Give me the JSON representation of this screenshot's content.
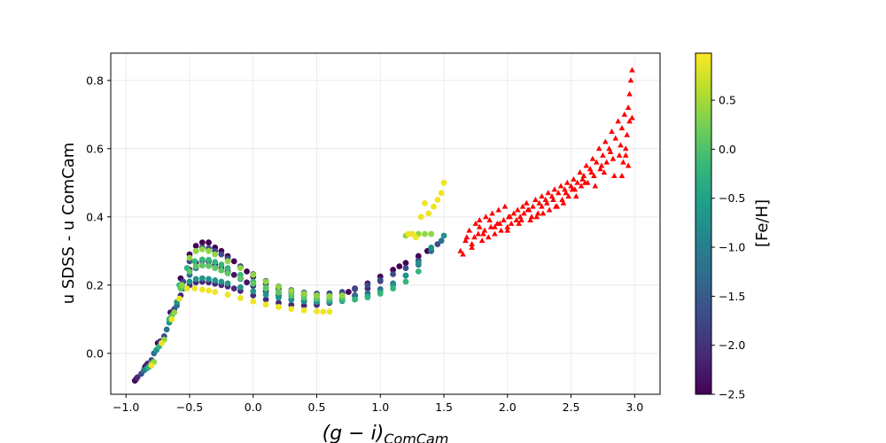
{
  "chart_data": {
    "type": "scatter",
    "title": "",
    "xlabel_main": "(g − i)",
    "xlabel_sub": "ComCam",
    "ylabel": "u SDSS - u ComCam",
    "xlim": [
      -1.12,
      3.2
    ],
    "ylim": [
      -0.12,
      0.88
    ],
    "x_ticks": [
      -1.0,
      -0.5,
      0.0,
      0.5,
      1.0,
      1.5,
      2.0,
      2.5,
      3.0
    ],
    "x_tick_labels": [
      "−1.0",
      "−0.5",
      "0.0",
      "0.5",
      "1.0",
      "1.5",
      "2.0",
      "2.5",
      "3.0"
    ],
    "y_ticks": [
      0.0,
      0.2,
      0.4,
      0.6,
      0.8
    ],
    "y_tick_labels": [
      "0.0",
      "0.2",
      "0.4",
      "0.6",
      "0.8"
    ],
    "grid": true,
    "colorbar": {
      "label": "[Fe/H]",
      "colormap": "viridis",
      "range": [
        -2.5,
        0.98
      ],
      "ticks": [
        -2.5,
        -2.0,
        -1.5,
        -1.0,
        -0.5,
        0.0,
        0.5
      ],
      "tick_labels": [
        "−2.5",
        "−2.0",
        "−1.5",
        "−1.0",
        "−0.5",
        "0.0",
        "0.5"
      ],
      "stops": [
        "#440154",
        "#482878",
        "#3e4989",
        "#31688e",
        "#26828e",
        "#1f9e89",
        "#35b779",
        "#6ece58",
        "#b5de2b",
        "#fde725"
      ]
    },
    "series": [
      {
        "name": "model tracks (colored by [Fe/H])",
        "marker": "circle",
        "tracks": [
          {
            "feh": -2.5,
            "x": [
              -0.93,
              -0.85,
              -0.75,
              -0.65,
              -0.57,
              -0.5,
              -0.45,
              -0.4,
              -0.35,
              -0.3,
              -0.25,
              -0.2,
              -0.15,
              -0.1,
              -0.05,
              0.0,
              0.1,
              0.2,
              0.3,
              0.4,
              0.5,
              0.6,
              0.7,
              0.75,
              0.8,
              0.9,
              1.0,
              1.1,
              1.15,
              1.2,
              1.3,
              1.37
            ],
            "y": [
              -0.08,
              -0.04,
              0.03,
              0.12,
              0.22,
              0.29,
              0.315,
              0.325,
              0.325,
              0.31,
              0.3,
              0.285,
              0.27,
              0.255,
              0.24,
              0.225,
              0.205,
              0.19,
              0.18,
              0.172,
              0.17,
              0.17,
              0.175,
              0.18,
              0.19,
              0.205,
              0.225,
              0.245,
              0.255,
              0.265,
              0.285,
              0.3
            ]
          },
          {
            "feh": -2.3,
            "x": [
              -0.92,
              -0.84,
              -0.74,
              -0.64,
              -0.57,
              -0.5,
              -0.45,
              -0.4,
              -0.35,
              -0.3,
              -0.25,
              -0.2,
              -0.15,
              -0.1,
              -0.05,
              0.0,
              0.1,
              0.2,
              0.3,
              0.4,
              0.5,
              0.6,
              0.7
            ],
            "y": [
              -0.075,
              -0.035,
              0.03,
              0.12,
              0.2,
              0.245,
              0.265,
              0.272,
              0.27,
              0.26,
              0.25,
              0.24,
              0.23,
              0.22,
              0.208,
              0.198,
              0.182,
              0.168,
              0.158,
              0.152,
              0.15,
              0.152,
              0.158
            ]
          },
          {
            "feh": -2.1,
            "x": [
              -0.91,
              -0.83,
              -0.73,
              -0.63,
              -0.57,
              -0.5,
              -0.45,
              -0.4,
              -0.35,
              -0.3,
              -0.25,
              -0.2,
              -0.15,
              -0.1,
              0.0,
              0.1,
              0.2,
              0.3,
              0.4,
              0.5,
              0.6,
              0.7,
              0.8,
              0.9,
              1.0
            ],
            "y": [
              -0.07,
              -0.03,
              0.035,
              0.12,
              0.17,
              0.2,
              0.208,
              0.21,
              0.208,
              0.204,
              0.2,
              0.196,
              0.19,
              0.183,
              0.17,
              0.158,
              0.148,
              0.142,
              0.14,
              0.142,
              0.148,
              0.158,
              0.17,
              0.19,
              0.212
            ]
          },
          {
            "feh": -1.7,
            "x": [
              -0.88,
              -0.8,
              -0.7,
              -0.62,
              -0.55,
              -0.5,
              -0.45,
              -0.4,
              -0.35,
              -0.3,
              -0.25,
              -0.2,
              -0.1,
              0.0,
              0.1,
              0.2,
              0.3,
              0.4,
              0.5,
              0.6,
              0.7,
              0.8,
              0.9,
              1.0,
              1.1,
              1.2,
              1.3,
              1.4,
              1.45
            ],
            "y": [
              -0.06,
              -0.02,
              0.05,
              0.13,
              0.21,
              0.27,
              0.3,
              0.31,
              0.308,
              0.3,
              0.29,
              0.278,
              0.255,
              0.232,
              0.212,
              0.196,
              0.185,
              0.178,
              0.175,
              0.176,
              0.18,
              0.188,
              0.2,
              0.215,
              0.232,
              0.25,
              0.272,
              0.3,
              0.32
            ]
          },
          {
            "feh": -1.2,
            "x": [
              -0.86,
              -0.78,
              -0.68,
              -0.6,
              -0.55,
              -0.5,
              -0.45,
              -0.4,
              -0.35,
              -0.3,
              -0.25,
              -0.2,
              -0.1,
              0.0,
              0.1,
              0.2,
              0.3,
              0.4,
              0.5,
              0.6,
              0.7,
              0.8,
              0.9,
              1.0,
              1.1,
              1.2,
              1.3,
              1.4,
              1.48
            ],
            "y": [
              -0.05,
              0.0,
              0.07,
              0.14,
              0.19,
              0.23,
              0.25,
              0.258,
              0.258,
              0.252,
              0.244,
              0.235,
              0.218,
              0.202,
              0.188,
              0.176,
              0.168,
              0.163,
              0.16,
              0.16,
              0.162,
              0.168,
              0.176,
              0.188,
              0.205,
              0.228,
              0.26,
              0.3,
              0.33
            ]
          },
          {
            "feh": -0.7,
            "x": [
              -0.84,
              -0.76,
              -0.66,
              -0.6,
              -0.55,
              -0.5,
              -0.45,
              -0.4,
              -0.35,
              -0.3,
              -0.25,
              -0.2,
              -0.1,
              0.0,
              0.1,
              0.2,
              0.3,
              0.4,
              0.5,
              0.6,
              0.7,
              0.8,
              0.9,
              1.0,
              1.1,
              1.2,
              1.3,
              1.4,
              1.5
            ],
            "y": [
              -0.045,
              0.01,
              0.09,
              0.15,
              0.19,
              0.21,
              0.218,
              0.22,
              0.218,
              0.214,
              0.21,
              0.205,
              0.194,
              0.182,
              0.172,
              0.163,
              0.157,
              0.153,
              0.151,
              0.151,
              0.153,
              0.158,
              0.167,
              0.18,
              0.2,
              0.228,
              0.265,
              0.31,
              0.345
            ]
          },
          {
            "feh": -0.2,
            "x": [
              -0.82,
              -0.74,
              -0.66,
              -0.58,
              -0.52,
              -0.46,
              -0.4,
              -0.35,
              -0.3,
              -0.25,
              -0.2,
              -0.1,
              0.0,
              0.1,
              0.2,
              0.3,
              0.4,
              0.5,
              0.6,
              0.7,
              0.8,
              0.9,
              1.0,
              1.1,
              1.2,
              1.3
            ],
            "y": [
              -0.04,
              0.02,
              0.1,
              0.2,
              0.25,
              0.27,
              0.275,
              0.274,
              0.268,
              0.26,
              0.25,
              0.23,
              0.21,
              0.193,
              0.18,
              0.17,
              0.163,
              0.158,
              0.156,
              0.156,
              0.158,
              0.164,
              0.175,
              0.19,
              0.21,
              0.24
            ]
          },
          {
            "feh": 0.1,
            "x": [
              -0.8,
              -0.72,
              -0.64,
              -0.57,
              -0.5,
              -0.45,
              -0.4,
              -0.35,
              -0.3,
              -0.25,
              -0.2,
              -0.1,
              0.0,
              0.1,
              0.2,
              0.3,
              0.4,
              0.5,
              0.6,
              0.7
            ],
            "y": [
              -0.03,
              0.03,
              0.11,
              0.19,
              0.24,
              0.255,
              0.258,
              0.256,
              0.25,
              0.243,
              0.235,
              0.22,
              0.205,
              0.19,
              0.178,
              0.17,
              0.165,
              0.162,
              0.162,
              0.165
            ]
          },
          {
            "feh": 0.4,
            "x": [
              -0.78,
              -0.7,
              -0.62,
              -0.56,
              -0.5,
              -0.45,
              -0.4,
              -0.35,
              -0.3,
              -0.2,
              -0.1,
              0.0,
              0.1,
              0.2,
              0.3,
              0.4,
              0.5,
              0.6,
              0.7,
              1.2,
              1.25,
              1.3,
              1.35,
              1.4
            ],
            "y": [
              -0.025,
              0.04,
              0.12,
              0.2,
              0.28,
              0.3,
              0.305,
              0.3,
              0.29,
              0.27,
              0.25,
              0.23,
              0.21,
              0.195,
              0.183,
              0.175,
              0.17,
              0.168,
              0.17,
              0.345,
              0.35,
              0.35,
              0.35,
              0.35
            ]
          },
          {
            "feh": 0.9,
            "x": [
              -0.8,
              -0.72,
              -0.64,
              -0.58,
              -0.52,
              -0.46,
              -0.4,
              -0.35,
              -0.3,
              -0.2,
              -0.1,
              0.0,
              0.1,
              0.2,
              0.3,
              0.4,
              0.5,
              0.55,
              0.6,
              1.22,
              1.25,
              1.28,
              1.32,
              1.35,
              1.38,
              1.42,
              1.45,
              1.48,
              1.5
            ],
            "y": [
              -0.035,
              0.03,
              0.1,
              0.16,
              0.19,
              0.19,
              0.187,
              0.184,
              0.18,
              0.172,
              0.162,
              0.152,
              0.143,
              0.136,
              0.13,
              0.126,
              0.123,
              0.122,
              0.122,
              0.35,
              0.35,
              0.34,
              0.4,
              0.44,
              0.41,
              0.43,
              0.45,
              0.47,
              0.5
            ]
          }
        ]
      },
      {
        "name": "red triangles",
        "marker": "triangle",
        "color": "#ff0000",
        "x": [
          1.63,
          1.65,
          1.67,
          1.7,
          1.72,
          1.74,
          1.75,
          1.77,
          1.78,
          1.8,
          1.82,
          1.83,
          1.85,
          1.87,
          1.88,
          1.9,
          1.92,
          1.93,
          1.95,
          1.97,
          1.98,
          2.0,
          2.02,
          2.03,
          2.05,
          2.07,
          2.08,
          2.1,
          2.12,
          2.13,
          2.15,
          2.17,
          2.18,
          2.2,
          2.22,
          2.23,
          2.25,
          2.27,
          2.28,
          2.3,
          2.32,
          2.33,
          2.35,
          2.37,
          2.38,
          2.4,
          2.42,
          2.43,
          2.45,
          2.47,
          2.48,
          2.5,
          2.52,
          2.53,
          2.55,
          2.57,
          2.58,
          2.6,
          2.62,
          2.63,
          2.65,
          2.67,
          2.68,
          2.7,
          2.72,
          2.73,
          2.75,
          2.77,
          2.78,
          2.8,
          2.82,
          2.83,
          2.85,
          2.87,
          2.88,
          2.9,
          2.92,
          2.93,
          2.95,
          2.96,
          2.97,
          2.98,
          1.68,
          1.78,
          1.86,
          1.94,
          2.01,
          2.09,
          2.16,
          2.24,
          2.31,
          2.39,
          2.46,
          2.54,
          2.61,
          2.69,
          2.76,
          2.84,
          2.91,
          2.96,
          1.72,
          1.81,
          1.9,
          2.0,
          2.11,
          2.19,
          2.27,
          2.36,
          2.44,
          2.51,
          2.59,
          2.66,
          2.74,
          2.81,
          2.89,
          2.94,
          2.98,
          2.95,
          2.93,
          2.9
        ],
        "y": [
          0.3,
          0.29,
          0.33,
          0.36,
          0.32,
          0.34,
          0.38,
          0.35,
          0.39,
          0.33,
          0.36,
          0.4,
          0.34,
          0.37,
          0.41,
          0.35,
          0.38,
          0.42,
          0.36,
          0.39,
          0.43,
          0.37,
          0.4,
          0.38,
          0.41,
          0.39,
          0.42,
          0.4,
          0.43,
          0.41,
          0.44,
          0.42,
          0.39,
          0.43,
          0.45,
          0.4,
          0.44,
          0.46,
          0.41,
          0.45,
          0.47,
          0.42,
          0.46,
          0.48,
          0.43,
          0.47,
          0.49,
          0.45,
          0.48,
          0.5,
          0.46,
          0.49,
          0.51,
          0.48,
          0.5,
          0.53,
          0.49,
          0.52,
          0.55,
          0.5,
          0.54,
          0.57,
          0.52,
          0.56,
          0.6,
          0.54,
          0.58,
          0.62,
          0.56,
          0.6,
          0.65,
          0.57,
          0.63,
          0.68,
          0.58,
          0.66,
          0.7,
          0.6,
          0.72,
          0.76,
          0.8,
          0.83,
          0.34,
          0.37,
          0.39,
          0.38,
          0.4,
          0.38,
          0.42,
          0.41,
          0.44,
          0.43,
          0.47,
          0.46,
          0.5,
          0.49,
          0.53,
          0.52,
          0.56,
          0.68,
          0.31,
          0.35,
          0.37,
          0.36,
          0.39,
          0.4,
          0.43,
          0.45,
          0.44,
          0.48,
          0.51,
          0.53,
          0.55,
          0.59,
          0.61,
          0.64,
          0.69,
          0.55,
          0.58,
          0.52
        ]
      }
    ]
  }
}
